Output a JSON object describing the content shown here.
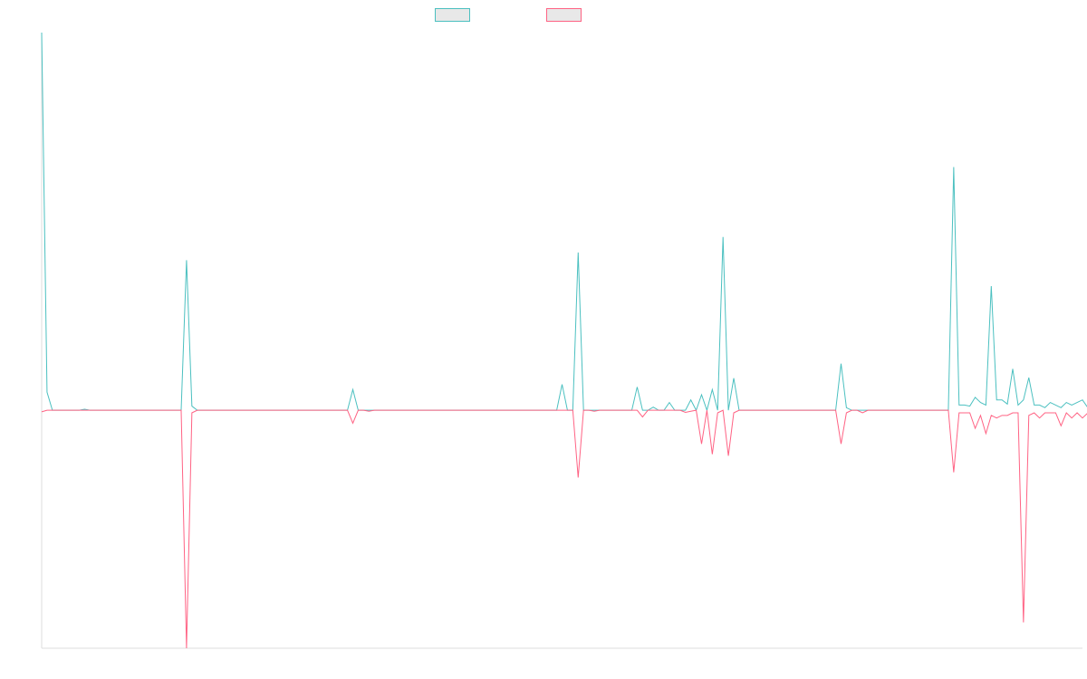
{
  "colors": {
    "series_a": "#4bc0c0",
    "series_b": "#ff6384",
    "axis": "#dcdcdc",
    "legend_fill": "#e8e8e8"
  },
  "legend": {
    "items": [
      {
        "label": "",
        "color": "#4bc0c0"
      },
      {
        "label": "",
        "color": "#ff6384"
      }
    ]
  },
  "chart_data": {
    "type": "line",
    "legend_position": "top-center",
    "grid": false,
    "show_tick_labels": false,
    "xlim": [
      0,
      194
    ],
    "ylim": [
      -0.46,
      0.73
    ],
    "series": [
      {
        "color": "#4bc0c0",
        "values": [
          0.73,
          0.035,
          0,
          0,
          0,
          0,
          0,
          0,
          0.002,
          0,
          0,
          0,
          0,
          0,
          0,
          0,
          0,
          0,
          0,
          0,
          0,
          0,
          0,
          0,
          0,
          0,
          0,
          0.29,
          0.008,
          0,
          0,
          0,
          0,
          0,
          0,
          0,
          0,
          0,
          0,
          0,
          0,
          0,
          0,
          0,
          0,
          0,
          0,
          0,
          0,
          0,
          0,
          0,
          0,
          0,
          0,
          0,
          0,
          0,
          0.04,
          0,
          0,
          0,
          0,
          0,
          0,
          0,
          0,
          0,
          0,
          0,
          0,
          0,
          0,
          0,
          0,
          0,
          0,
          0,
          0,
          0,
          0,
          0,
          0,
          0,
          0,
          0,
          0,
          0,
          0,
          0,
          0,
          0,
          0,
          0,
          0,
          0,
          0,
          0.05,
          0,
          0,
          0.305,
          0,
          0,
          0,
          0,
          0,
          0,
          0,
          0,
          0,
          0,
          0.045,
          0,
          0,
          0.006,
          0,
          0,
          0.015,
          0,
          0,
          0,
          0.02,
          0,
          0.03,
          0,
          0.04,
          0,
          0.335,
          0,
          0.062,
          0,
          0,
          0,
          0,
          0,
          0,
          0,
          0,
          0,
          0,
          0,
          0,
          0,
          0,
          0,
          0,
          0,
          0,
          0,
          0.09,
          0.005,
          0,
          0,
          0,
          0,
          0,
          0,
          0,
          0,
          0,
          0,
          0,
          0,
          0,
          0,
          0,
          0,
          0,
          0,
          0,
          0.47,
          0.01,
          0.01,
          0.008,
          0.025,
          0.015,
          0.01,
          0.24,
          0.02,
          0.02,
          0.012,
          0.08,
          0.01,
          0.02,
          0.063,
          0.01,
          0.01,
          0.005,
          0.015,
          0.01,
          0.005,
          0.015,
          0.01,
          0.015,
          0.02,
          0.005,
          0.005,
          0.02,
          0.02,
          0.01,
          0.01,
          0.015,
          0.005,
          0.005,
          0.01,
          0.01,
          0.01,
          0.015,
          0.005
        ]
      },
      {
        "color": "#ff6384",
        "values": [
          -0.003,
          0,
          0,
          0,
          0,
          0,
          0,
          0,
          0,
          0,
          0,
          0,
          0,
          0,
          0,
          0,
          0,
          0,
          0,
          0,
          0,
          0,
          0,
          0,
          0,
          0,
          0,
          -0.46,
          -0.005,
          0,
          0,
          0,
          0,
          0,
          0,
          0,
          0,
          0,
          0,
          0,
          0,
          0,
          0,
          0,
          0,
          0,
          0,
          0,
          0,
          0,
          0,
          0,
          0,
          0,
          0,
          0,
          0,
          0,
          -0.025,
          0,
          0,
          -0.002,
          0,
          0,
          0,
          0,
          0,
          0,
          0,
          0,
          0,
          0,
          0,
          0,
          0,
          0,
          0,
          0,
          0,
          0,
          0,
          0,
          0,
          0,
          0,
          0,
          0,
          0,
          0,
          0,
          0,
          0,
          0,
          0,
          0,
          0,
          0,
          0,
          0,
          0,
          -0.13,
          0,
          0,
          -0.002,
          0,
          0,
          0,
          0,
          0,
          0,
          0,
          0,
          -0.013,
          0,
          0,
          0,
          0,
          0,
          0,
          0,
          -0.004,
          -0.002,
          0,
          -0.065,
          0,
          -0.085,
          -0.005,
          0,
          -0.088,
          -0.005,
          0,
          0,
          0,
          0,
          0,
          0,
          0,
          0,
          0,
          0,
          0,
          0,
          0,
          0,
          0,
          0,
          0,
          0,
          0,
          -0.065,
          -0.005,
          0,
          0,
          -0.005,
          0,
          0,
          0,
          0,
          0,
          0,
          0,
          0,
          0,
          0,
          0,
          0,
          0,
          0,
          0,
          0,
          -0.12,
          -0.005,
          -0.005,
          -0.005,
          -0.035,
          -0.01,
          -0.045,
          -0.01,
          -0.015,
          -0.01,
          -0.01,
          -0.005,
          -0.005,
          -0.41,
          -0.01,
          -0.005,
          -0.015,
          -0.005,
          -0.005,
          -0.005,
          -0.03,
          -0.005,
          -0.015,
          -0.005,
          -0.015,
          -0.005,
          -0.005,
          -0.02,
          -0.015,
          -0.01,
          -0.005,
          -0.015,
          -0.005,
          -0.01,
          -0.01,
          -0.02,
          -0.005,
          -0.005,
          -0.02
        ]
      }
    ]
  }
}
